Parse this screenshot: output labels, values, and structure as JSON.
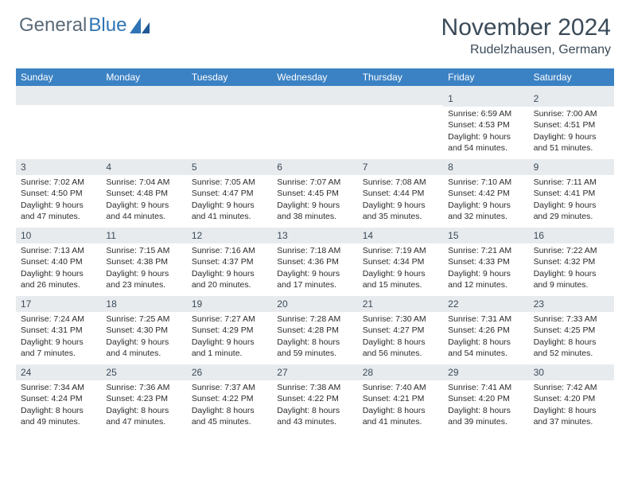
{
  "brand": {
    "part1": "General",
    "part2": "Blue"
  },
  "title": "November 2024",
  "location": "Rudelzhausen, Germany",
  "colors": {
    "header_bar": "#3b82c4",
    "daynum_bg": "#e8ebee",
    "text_dark": "#3a4a58",
    "body_text": "#2b2b2b",
    "logo_gray": "#5a6a78",
    "logo_blue": "#2f74b5"
  },
  "weekdays": [
    "Sunday",
    "Monday",
    "Tuesday",
    "Wednesday",
    "Thursday",
    "Friday",
    "Saturday"
  ],
  "weeks": [
    [
      null,
      null,
      null,
      null,
      null,
      {
        "n": "1",
        "sunrise": "Sunrise: 6:59 AM",
        "sunset": "Sunset: 4:53 PM",
        "day1": "Daylight: 9 hours",
        "day2": "and 54 minutes."
      },
      {
        "n": "2",
        "sunrise": "Sunrise: 7:00 AM",
        "sunset": "Sunset: 4:51 PM",
        "day1": "Daylight: 9 hours",
        "day2": "and 51 minutes."
      }
    ],
    [
      {
        "n": "3",
        "sunrise": "Sunrise: 7:02 AM",
        "sunset": "Sunset: 4:50 PM",
        "day1": "Daylight: 9 hours",
        "day2": "and 47 minutes."
      },
      {
        "n": "4",
        "sunrise": "Sunrise: 7:04 AM",
        "sunset": "Sunset: 4:48 PM",
        "day1": "Daylight: 9 hours",
        "day2": "and 44 minutes."
      },
      {
        "n": "5",
        "sunrise": "Sunrise: 7:05 AM",
        "sunset": "Sunset: 4:47 PM",
        "day1": "Daylight: 9 hours",
        "day2": "and 41 minutes."
      },
      {
        "n": "6",
        "sunrise": "Sunrise: 7:07 AM",
        "sunset": "Sunset: 4:45 PM",
        "day1": "Daylight: 9 hours",
        "day2": "and 38 minutes."
      },
      {
        "n": "7",
        "sunrise": "Sunrise: 7:08 AM",
        "sunset": "Sunset: 4:44 PM",
        "day1": "Daylight: 9 hours",
        "day2": "and 35 minutes."
      },
      {
        "n": "8",
        "sunrise": "Sunrise: 7:10 AM",
        "sunset": "Sunset: 4:42 PM",
        "day1": "Daylight: 9 hours",
        "day2": "and 32 minutes."
      },
      {
        "n": "9",
        "sunrise": "Sunrise: 7:11 AM",
        "sunset": "Sunset: 4:41 PM",
        "day1": "Daylight: 9 hours",
        "day2": "and 29 minutes."
      }
    ],
    [
      {
        "n": "10",
        "sunrise": "Sunrise: 7:13 AM",
        "sunset": "Sunset: 4:40 PM",
        "day1": "Daylight: 9 hours",
        "day2": "and 26 minutes."
      },
      {
        "n": "11",
        "sunrise": "Sunrise: 7:15 AM",
        "sunset": "Sunset: 4:38 PM",
        "day1": "Daylight: 9 hours",
        "day2": "and 23 minutes."
      },
      {
        "n": "12",
        "sunrise": "Sunrise: 7:16 AM",
        "sunset": "Sunset: 4:37 PM",
        "day1": "Daylight: 9 hours",
        "day2": "and 20 minutes."
      },
      {
        "n": "13",
        "sunrise": "Sunrise: 7:18 AM",
        "sunset": "Sunset: 4:36 PM",
        "day1": "Daylight: 9 hours",
        "day2": "and 17 minutes."
      },
      {
        "n": "14",
        "sunrise": "Sunrise: 7:19 AM",
        "sunset": "Sunset: 4:34 PM",
        "day1": "Daylight: 9 hours",
        "day2": "and 15 minutes."
      },
      {
        "n": "15",
        "sunrise": "Sunrise: 7:21 AM",
        "sunset": "Sunset: 4:33 PM",
        "day1": "Daylight: 9 hours",
        "day2": "and 12 minutes."
      },
      {
        "n": "16",
        "sunrise": "Sunrise: 7:22 AM",
        "sunset": "Sunset: 4:32 PM",
        "day1": "Daylight: 9 hours",
        "day2": "and 9 minutes."
      }
    ],
    [
      {
        "n": "17",
        "sunrise": "Sunrise: 7:24 AM",
        "sunset": "Sunset: 4:31 PM",
        "day1": "Daylight: 9 hours",
        "day2": "and 7 minutes."
      },
      {
        "n": "18",
        "sunrise": "Sunrise: 7:25 AM",
        "sunset": "Sunset: 4:30 PM",
        "day1": "Daylight: 9 hours",
        "day2": "and 4 minutes."
      },
      {
        "n": "19",
        "sunrise": "Sunrise: 7:27 AM",
        "sunset": "Sunset: 4:29 PM",
        "day1": "Daylight: 9 hours",
        "day2": "and 1 minute."
      },
      {
        "n": "20",
        "sunrise": "Sunrise: 7:28 AM",
        "sunset": "Sunset: 4:28 PM",
        "day1": "Daylight: 8 hours",
        "day2": "and 59 minutes."
      },
      {
        "n": "21",
        "sunrise": "Sunrise: 7:30 AM",
        "sunset": "Sunset: 4:27 PM",
        "day1": "Daylight: 8 hours",
        "day2": "and 56 minutes."
      },
      {
        "n": "22",
        "sunrise": "Sunrise: 7:31 AM",
        "sunset": "Sunset: 4:26 PM",
        "day1": "Daylight: 8 hours",
        "day2": "and 54 minutes."
      },
      {
        "n": "23",
        "sunrise": "Sunrise: 7:33 AM",
        "sunset": "Sunset: 4:25 PM",
        "day1": "Daylight: 8 hours",
        "day2": "and 52 minutes."
      }
    ],
    [
      {
        "n": "24",
        "sunrise": "Sunrise: 7:34 AM",
        "sunset": "Sunset: 4:24 PM",
        "day1": "Daylight: 8 hours",
        "day2": "and 49 minutes."
      },
      {
        "n": "25",
        "sunrise": "Sunrise: 7:36 AM",
        "sunset": "Sunset: 4:23 PM",
        "day1": "Daylight: 8 hours",
        "day2": "and 47 minutes."
      },
      {
        "n": "26",
        "sunrise": "Sunrise: 7:37 AM",
        "sunset": "Sunset: 4:22 PM",
        "day1": "Daylight: 8 hours",
        "day2": "and 45 minutes."
      },
      {
        "n": "27",
        "sunrise": "Sunrise: 7:38 AM",
        "sunset": "Sunset: 4:22 PM",
        "day1": "Daylight: 8 hours",
        "day2": "and 43 minutes."
      },
      {
        "n": "28",
        "sunrise": "Sunrise: 7:40 AM",
        "sunset": "Sunset: 4:21 PM",
        "day1": "Daylight: 8 hours",
        "day2": "and 41 minutes."
      },
      {
        "n": "29",
        "sunrise": "Sunrise: 7:41 AM",
        "sunset": "Sunset: 4:20 PM",
        "day1": "Daylight: 8 hours",
        "day2": "and 39 minutes."
      },
      {
        "n": "30",
        "sunrise": "Sunrise: 7:42 AM",
        "sunset": "Sunset: 4:20 PM",
        "day1": "Daylight: 8 hours",
        "day2": "and 37 minutes."
      }
    ]
  ]
}
